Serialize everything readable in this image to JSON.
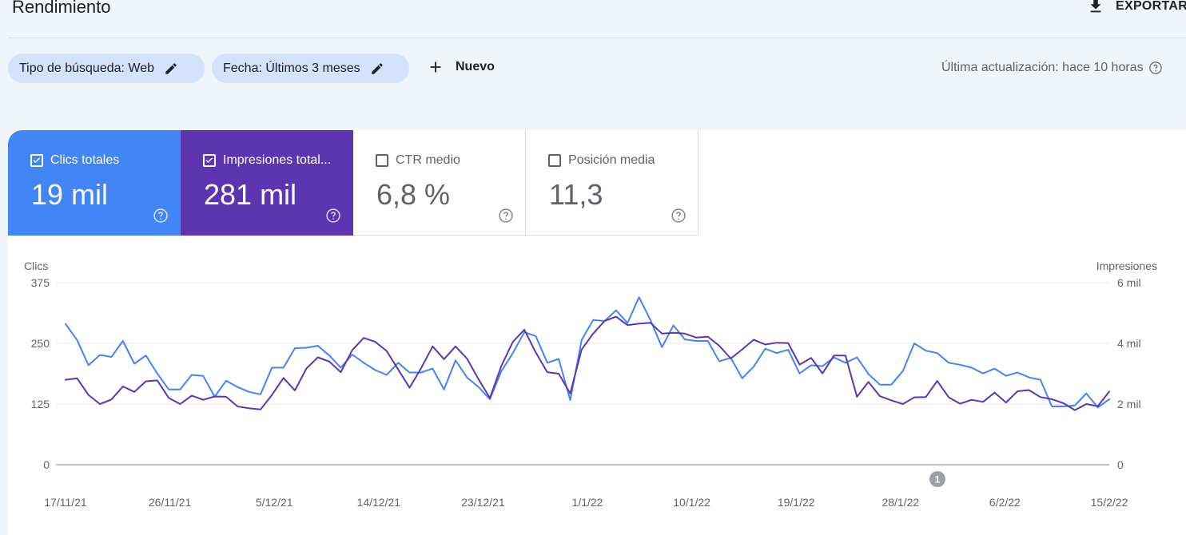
{
  "header": {
    "title": "Rendimiento",
    "export_label": "EXPORTAR"
  },
  "filters": {
    "chips": [
      {
        "label": "Tipo de búsqueda: Web"
      },
      {
        "label": "Fecha: Últimos 3 meses"
      }
    ],
    "new_label": "Nuevo",
    "last_update": "Última actualización: hace 10 horas"
  },
  "metrics": [
    {
      "label": "Clics totales",
      "value": "19 mil",
      "checked": true,
      "color": "#4285f4"
    },
    {
      "label": "Impresiones total...",
      "value": "281 mil",
      "checked": true,
      "color": "#5e35b1"
    },
    {
      "label": "CTR medio",
      "value": "6,8 %",
      "checked": false
    },
    {
      "label": "Posición media",
      "value": "11,3",
      "checked": false
    }
  ],
  "annotation_badge": "1",
  "chart_data": {
    "type": "line",
    "ylabel": "Clics",
    "y2label": "Impresiones",
    "ylim": [
      0,
      375
    ],
    "y2lim": [
      0,
      6000
    ],
    "y_ticks": [
      "0",
      "125",
      "250",
      "375"
    ],
    "y2_ticks": [
      "0",
      "2 mil",
      "4 mil",
      "6 mil"
    ],
    "x_ticks": [
      "17/11/21",
      "26/11/21",
      "5/12/21",
      "14/12/21",
      "23/12/21",
      "1/1/22",
      "10/1/22",
      "19/1/22",
      "28/1/22",
      "6/2/22",
      "15/2/22"
    ],
    "grid": true,
    "series": [
      {
        "name": "Clics",
        "color": "#4285f4",
        "axis": "left",
        "values": [
          290,
          257,
          205,
          226,
          222,
          255,
          208,
          225,
          188,
          155,
          155,
          185,
          183,
          140,
          173,
          160,
          150,
          145,
          200,
          200,
          240,
          241,
          245,
          225,
          200,
          227,
          210,
          195,
          185,
          210,
          190,
          190,
          198,
          155,
          215,
          180,
          160,
          135,
          193,
          230,
          273,
          265,
          210,
          218,
          133,
          257,
          298,
          296,
          318,
          292,
          345,
          298,
          242,
          287,
          258,
          255,
          255,
          213,
          220,
          178,
          202,
          239,
          230,
          237,
          188,
          205,
          203,
          221,
          210,
          221,
          187,
          165,
          165,
          193,
          250,
          235,
          230,
          210,
          206,
          200,
          188,
          198,
          183,
          190,
          180,
          175,
          120,
          120,
          122,
          147,
          118,
          135
        ]
      },
      {
        "name": "Impresiones",
        "color": "#5e35b1",
        "axis": "right",
        "values": [
          2800,
          2850,
          2300,
          2000,
          2150,
          2580,
          2400,
          2750,
          2780,
          2200,
          2000,
          2280,
          2140,
          2250,
          2240,
          1920,
          1860,
          1820,
          2300,
          2860,
          2450,
          3170,
          3540,
          3400,
          3050,
          3780,
          4180,
          4050,
          3750,
          3140,
          2540,
          3180,
          3900,
          3480,
          3900,
          3500,
          2820,
          2200,
          3260,
          4050,
          4450,
          3700,
          3050,
          3000,
          2350,
          3800,
          4320,
          4740,
          4880,
          4600,
          4650,
          4680,
          4320,
          4350,
          4320,
          4190,
          4220,
          3920,
          3500,
          3800,
          4120,
          3960,
          4020,
          4010,
          3300,
          3520,
          3010,
          3600,
          3600,
          2240,
          2730,
          2260,
          2120,
          2000,
          2220,
          2230,
          2760,
          2220,
          2010,
          2140,
          2070,
          2380,
          2050,
          2420,
          2460,
          2230,
          2160,
          2030,
          1800,
          2000,
          1930,
          2410
        ]
      }
    ]
  }
}
